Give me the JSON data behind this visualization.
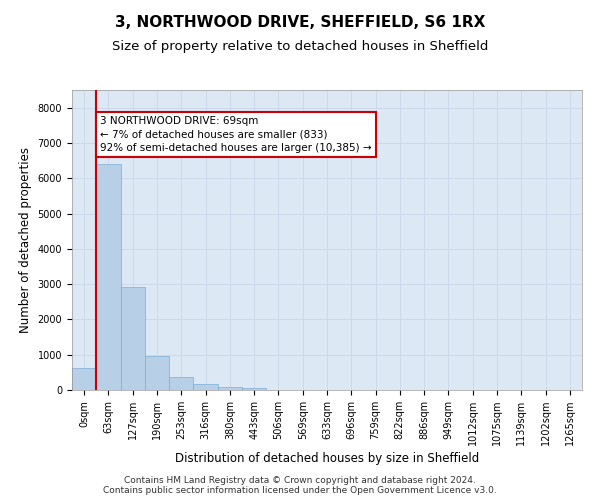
{
  "title": "3, NORTHWOOD DRIVE, SHEFFIELD, S6 1RX",
  "subtitle": "Size of property relative to detached houses in Sheffield",
  "xlabel": "Distribution of detached houses by size in Sheffield",
  "ylabel": "Number of detached properties",
  "bar_labels": [
    "0sqm",
    "63sqm",
    "127sqm",
    "190sqm",
    "253sqm",
    "316sqm",
    "380sqm",
    "443sqm",
    "506sqm",
    "569sqm",
    "633sqm",
    "696sqm",
    "759sqm",
    "822sqm",
    "886sqm",
    "949sqm",
    "1012sqm",
    "1075sqm",
    "1139sqm",
    "1202sqm",
    "1265sqm"
  ],
  "bar_heights": [
    620,
    6400,
    2920,
    970,
    370,
    160,
    80,
    55,
    0,
    0,
    0,
    0,
    0,
    0,
    0,
    0,
    0,
    0,
    0,
    0,
    0
  ],
  "bar_color": "#b8cfe8",
  "bar_edge_color": "#7aaed6",
  "vline_color": "#cc0000",
  "vline_x": 0.5,
  "annotation_title": "3 NORTHWOOD DRIVE: 69sqm",
  "annotation_line1": "← 7% of detached houses are smaller (833)",
  "annotation_line2": "92% of semi-detached houses are larger (10,385) →",
  "ylim": [
    0,
    8500
  ],
  "yticks": [
    0,
    1000,
    2000,
    3000,
    4000,
    5000,
    6000,
    7000,
    8000
  ],
  "grid_color": "#ccd8ec",
  "bg_color": "#dde8f5",
  "footer_line1": "Contains HM Land Registry data © Crown copyright and database right 2024.",
  "footer_line2": "Contains public sector information licensed under the Open Government Licence v3.0.",
  "title_fontsize": 11,
  "subtitle_fontsize": 9.5,
  "ylabel_fontsize": 8.5,
  "xlabel_fontsize": 8.5,
  "tick_fontsize": 7,
  "footer_fontsize": 6.5,
  "annotation_fontsize": 7.5
}
